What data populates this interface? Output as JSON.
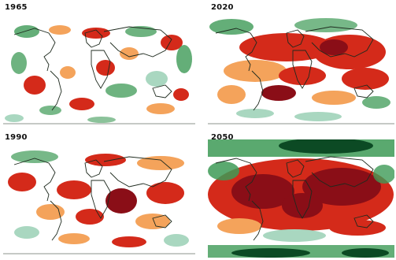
{
  "panels": [
    {
      "id": "p1965",
      "label": "1965"
    },
    {
      "id": "p2020",
      "label": "2020"
    },
    {
      "id": "p1990",
      "label": "1990"
    },
    {
      "id": "p2050",
      "label": "2050"
    }
  ],
  "colors": {
    "dark_red": "#8a0e17",
    "red": "#d42a1a",
    "orange": "#f4a35b",
    "light_green": "#a9d7c0",
    "green": "#3d9a56",
    "dark_green": "#0c4a24",
    "coastline": "#1e2a1e",
    "background": "#ffffff"
  }
}
